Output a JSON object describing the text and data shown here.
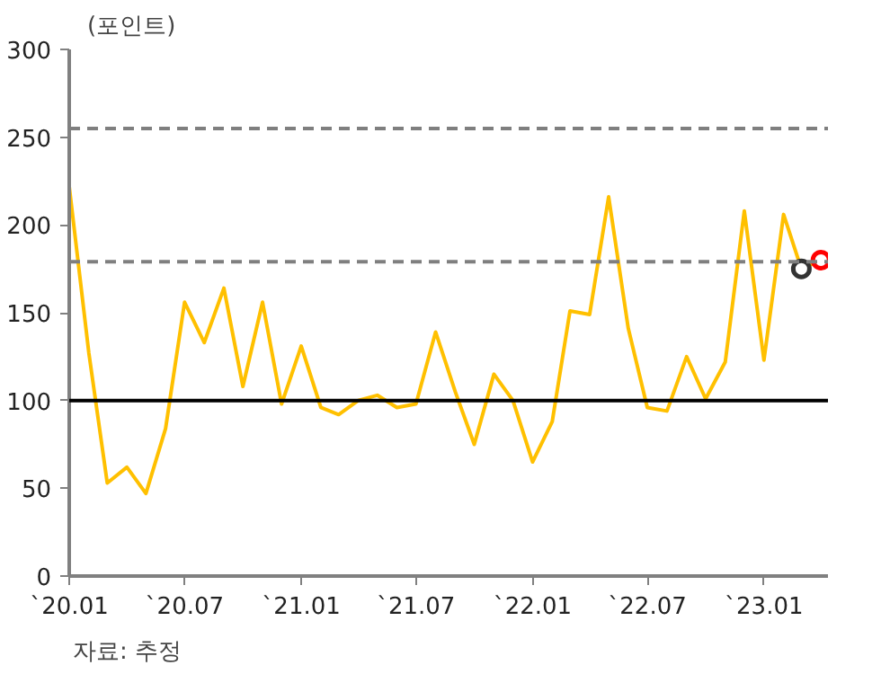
{
  "chart_data": {
    "type": "line",
    "ylabel": "(포인트)",
    "annotations": [
      "자료: 추정"
    ],
    "x": [
      "2020-01",
      "2020-02",
      "2020-03",
      "2020-04",
      "2020-05",
      "2020-06",
      "2020-07",
      "2020-08",
      "2020-09",
      "2020-10",
      "2020-11",
      "2020-12",
      "2021-01",
      "2021-02",
      "2021-03",
      "2021-04",
      "2021-05",
      "2021-06",
      "2021-07",
      "2021-08",
      "2021-09",
      "2021-10",
      "2021-11",
      "2021-12",
      "2022-01",
      "2022-02",
      "2022-03",
      "2022-04",
      "2022-05",
      "2022-06",
      "2022-07",
      "2022-08",
      "2022-09",
      "2022-10",
      "2022-11",
      "2022-12",
      "2023-01",
      "2023-02",
      "2023-03",
      "2023-04"
    ],
    "series": [
      {
        "color": "#ffc000",
        "values": [
          222,
          127,
          53,
          62,
          47,
          84,
          156,
          133,
          164,
          108,
          156,
          98,
          131,
          96,
          92,
          100,
          103,
          96,
          98,
          139,
          105,
          75,
          115,
          100,
          65,
          88,
          151,
          149,
          216,
          141,
          96,
          94,
          125,
          101,
          122,
          208,
          123,
          206,
          175,
          180
        ]
      },
      {
        "type": "scatter",
        "color": "#333333",
        "marker": "circle",
        "x": [
          "2023-03"
        ],
        "values": [
          175
        ]
      },
      {
        "type": "scatter",
        "color": "#ff0000",
        "marker": "circle",
        "x": [
          "2023-04"
        ],
        "values": [
          180
        ]
      }
    ],
    "xlim": [
      "2020-01",
      "2023-04-12"
    ],
    "xticks": [
      {
        "value": "2020-01",
        "label": "`20.01"
      },
      {
        "value": "2020-07",
        "label": "`20.07"
      },
      {
        "value": "2021-01",
        "label": "`21.01"
      },
      {
        "value": "2021-07",
        "label": "`21.07"
      },
      {
        "value": "2022-01",
        "label": "`22.01"
      },
      {
        "value": "2022-07",
        "label": "`22.07"
      },
      {
        "value": "2023-01",
        "label": "`23.01"
      }
    ],
    "ylim": [
      0,
      300
    ],
    "yticks": [
      0,
      50,
      100,
      150,
      200,
      250,
      300
    ],
    "ref_lines": [
      {
        "axis": "y",
        "value": 255,
        "color": "#7f7f7f",
        "line_style": "dashed"
      },
      {
        "axis": "y",
        "value": 179,
        "color": "#7f7f7f",
        "line_style": "dashed"
      },
      {
        "axis": "y",
        "value": 100,
        "color": "#000000",
        "line_style": "solid"
      }
    ],
    "grid": false
  }
}
